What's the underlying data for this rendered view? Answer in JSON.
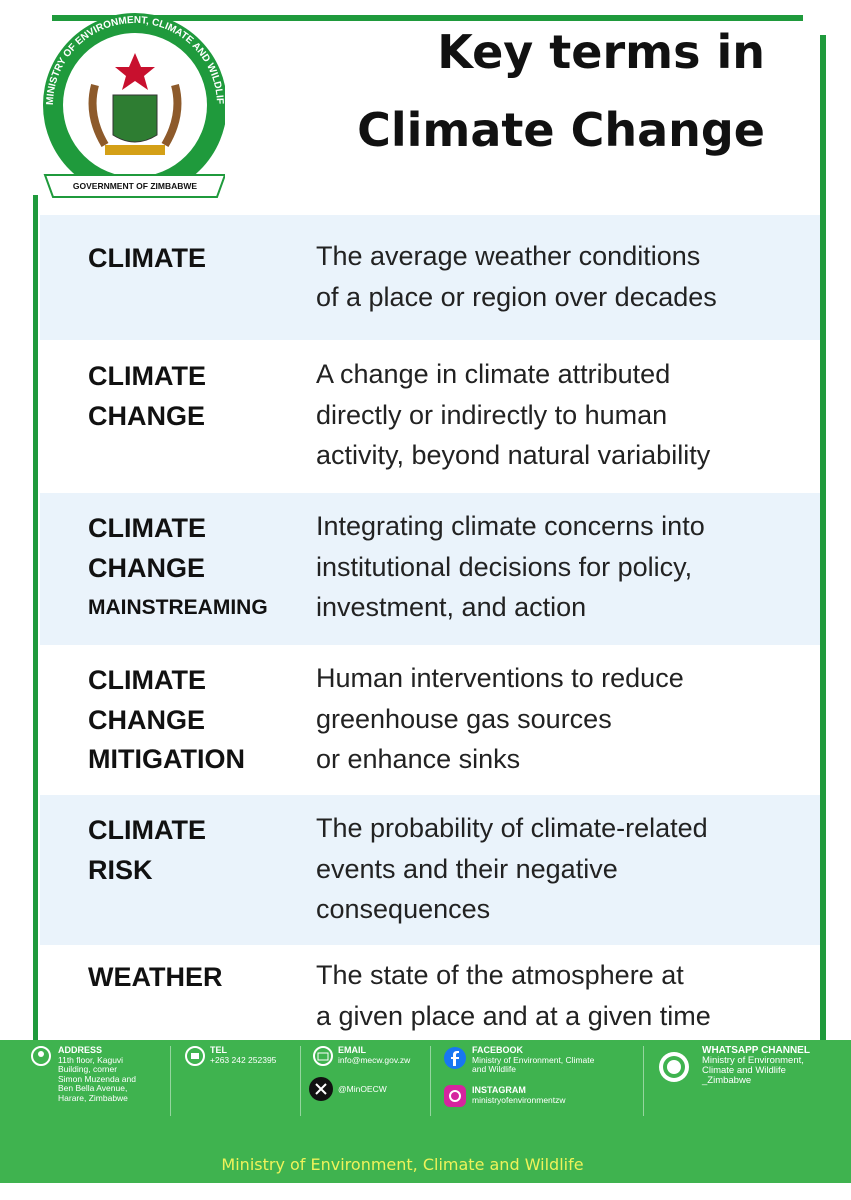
{
  "header": {
    "logo_ring_text": "MINISTRY OF ENVIRONMENT, CLIMATE AND WILDLIFE",
    "logo_banner_text": "GOVERNMENT OF ZIMBABWE",
    "title_lines": [
      "Key terms in",
      "Climate Change"
    ]
  },
  "terms": [
    {
      "term_lines": [
        "CLIMATE"
      ],
      "definition_lines": [
        "The average weather conditions",
        "of a place or region over decades"
      ]
    },
    {
      "term_lines": [
        "CLIMATE",
        "CHANGE"
      ],
      "definition_lines": [
        "A change in climate attributed",
        "directly or indirectly to human",
        "activity, beyond natural variability"
      ]
    },
    {
      "term_lines": [
        "CLIMATE",
        "CHANGE",
        "MAINSTREAMING"
      ],
      "definition_lines": [
        "Integrating climate concerns into",
        "institutional decisions for policy,",
        "investment, and action"
      ]
    },
    {
      "term_lines": [
        "CLIMATE",
        "CHANGE",
        "MITIGATION"
      ],
      "definition_lines": [
        "Human interventions to reduce",
        "greenhouse gas sources",
        "or enhance sinks"
      ]
    },
    {
      "term_lines": [
        "CLIMATE",
        "RISK"
      ],
      "definition_lines": [
        "The probability of climate-related",
        "events and their negative",
        "consequences"
      ]
    },
    {
      "term_lines": [
        "WEATHER"
      ],
      "definition_lines": [
        "The state of the atmosphere at",
        "a given place and at a given time"
      ]
    }
  ],
  "footer": {
    "address": {
      "label": "ADDRESS",
      "lines": [
        "11th floor, Kaguvi",
        "Building, corner",
        "Simon Muzenda and",
        "Ben Bella Avenue,",
        "Harare, Zimbabwe"
      ]
    },
    "tel": {
      "label": "TEL",
      "value": "+263 242 252395"
    },
    "email": {
      "label": "EMAIL",
      "value": "info@mecw.gov.zw"
    },
    "x": {
      "handle": "@MinOECW"
    },
    "facebook": {
      "label": "FACEBOOK",
      "lines": [
        "Ministry of Environment, Climate",
        "and Wildlife"
      ]
    },
    "instagram": {
      "label": "INSTAGRAM",
      "handle": "ministryofenvironmentzw"
    },
    "whatsapp": {
      "label": "WHATSAPP CHANNEL",
      "lines": [
        "Ministry of Environment,",
        "Climate and Wildlife",
        "_Zimbabwe"
      ]
    },
    "bottom_text": "Ministry of Environment, Climate and Wildlife"
  }
}
